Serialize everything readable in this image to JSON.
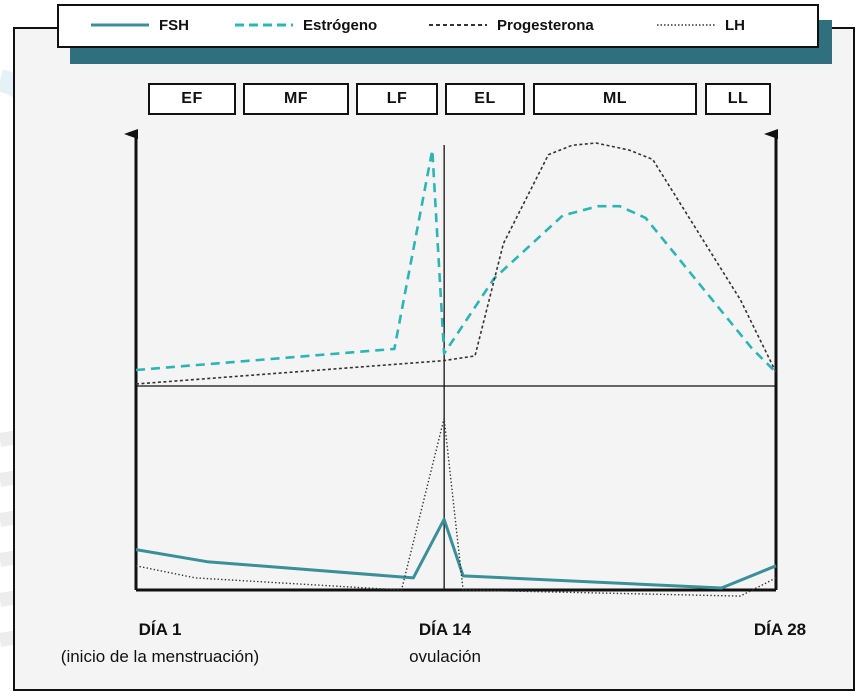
{
  "colors": {
    "fsh": "#3a8f99",
    "estrogeno": "#2cb5b5",
    "progesterona": "#333333",
    "lh": "#333333",
    "accent": "#2f6f7e"
  },
  "legend": [
    {
      "label": "FSH",
      "style": "solid"
    },
    {
      "label": "Estrógeno",
      "style": "dashed"
    },
    {
      "label": "Progesterona",
      "style": "short-dash"
    },
    {
      "label": "LH",
      "style": "dotted"
    }
  ],
  "phases": [
    "EF",
    "MF",
    "LF",
    "EL",
    "ML",
    "LL"
  ],
  "x_labels": [
    {
      "main": "DÍA 1",
      "sub": "(inicio de la menstruación)"
    },
    {
      "main": "DÍA 14",
      "sub": "ovulación"
    },
    {
      "main": "DÍA 28",
      "sub": ""
    }
  ],
  "chart_data": {
    "type": "line",
    "xlim": [
      1,
      28
    ],
    "ovulation_day": 14,
    "panels": [
      {
        "position": "upper",
        "ylim": [
          0,
          100
        ],
        "series": [
          {
            "name": "Estrógeno",
            "x": [
              1,
              11.9,
              13.5,
              14,
              16.1,
              19,
              20.5,
              21.4,
              22.5,
              27,
              28
            ],
            "y": [
              6,
              15,
              100,
              13,
              45,
              72,
              76,
              76,
              71,
              15,
              5
            ]
          },
          {
            "name": "Progesterona",
            "x": [
              1,
              14,
              15.3,
              16.5,
              18.4,
              19.4,
              20.4,
              21.8,
              22.8,
              26.5,
              28
            ],
            "y": [
              0,
              10,
              12,
              60,
              98,
              102,
              103,
              100,
              96,
              36,
              5
            ]
          }
        ]
      },
      {
        "position": "lower",
        "ylim": [
          0,
          100
        ],
        "series": [
          {
            "name": "FSH",
            "x": [
              1,
              4,
              12.7,
              14,
              14.8,
              25.7,
              28
            ],
            "y": [
              20,
              14,
              6,
              35,
              7,
              1,
              12
            ]
          },
          {
            "name": "LH",
            "x": [
              1,
              3.5,
              12.2,
              14,
              14.8,
              26.5,
              28
            ],
            "y": [
              12,
              6,
              0,
              85,
              0,
              -3,
              6
            ]
          }
        ]
      }
    ]
  }
}
